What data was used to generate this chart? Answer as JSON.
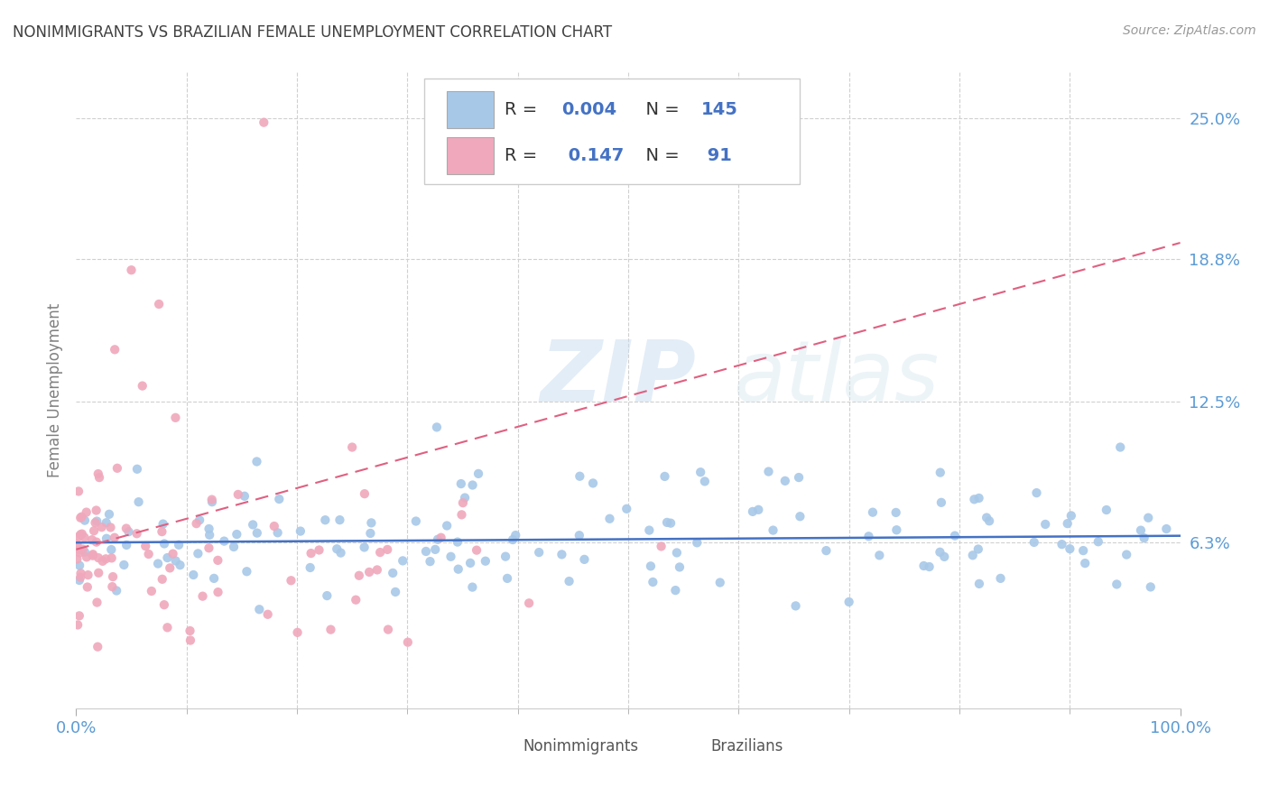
{
  "title": "NONIMMIGRANTS VS BRAZILIAN FEMALE UNEMPLOYMENT CORRELATION CHART",
  "source_text": "Source: ZipAtlas.com",
  "ylabel": "Female Unemployment",
  "watermark_zip": "ZIP",
  "watermark_atlas": "atlas",
  "ytick_labels": [
    "6.3%",
    "12.5%",
    "18.8%",
    "25.0%"
  ],
  "ytick_values": [
    0.063,
    0.125,
    0.188,
    0.25
  ],
  "xtick_labels_show": [
    "0.0%",
    "100.0%"
  ],
  "xtick_labels_show_pos": [
    0.0,
    1.0
  ],
  "xtick_minor_pos": [
    0.1,
    0.2,
    0.3,
    0.4,
    0.5,
    0.6,
    0.7,
    0.8,
    0.9
  ],
  "xmin": 0.0,
  "xmax": 1.0,
  "ymin": -0.01,
  "ymax": 0.27,
  "blue_color": "#a8c8e8",
  "pink_color": "#f0a8bc",
  "blue_trend_color": "#4472c4",
  "pink_trend_color": "#e06080",
  "blue_R": "0.004",
  "blue_N": "145",
  "pink_R": "0.147",
  "pink_N": "91",
  "legend_text_color": "#4472c4",
  "label_color": "#808080",
  "tick_color": "#5b9bd5",
  "grid_color": "#d0d0d0",
  "title_color": "#404040",
  "source_color": "#999999",
  "bottom_legend_label1": "Nonimmigrants",
  "bottom_legend_label2": "Brazilians"
}
